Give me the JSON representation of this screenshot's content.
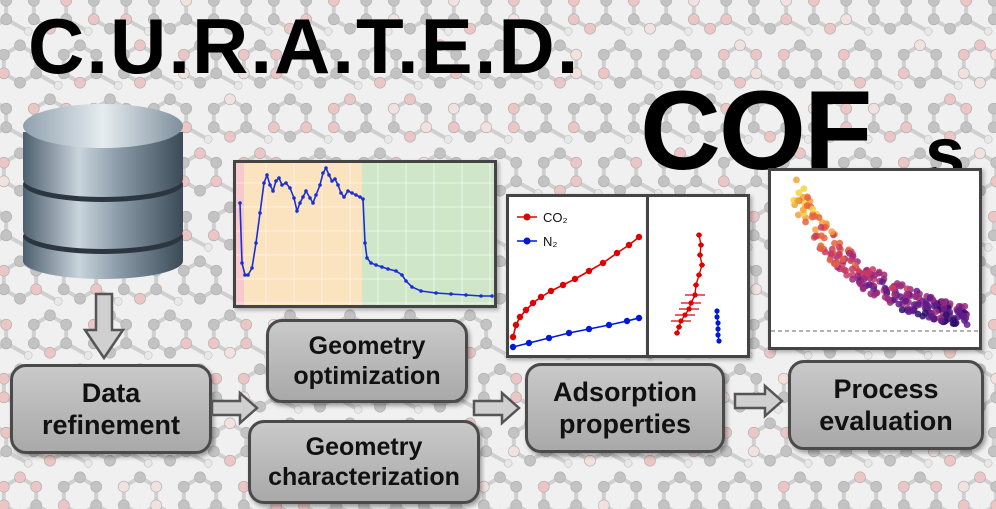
{
  "title": {
    "line1": "C.U.R.A.T.E.D.",
    "line2": "COF",
    "line2_subscript": "s"
  },
  "boxes": {
    "data_refinement": "Data\nrefinement",
    "geometry_optimization": "Geometry\noptimization",
    "geometry_characterization": "Geometry\ncharacterization",
    "adsorption_properties": "Adsorption\nproperties",
    "process_evaluation": "Process\nevaluation"
  },
  "adsorption_legend": {
    "co2": "CO₂",
    "n2": "N₂"
  },
  "colors": {
    "co2": "#e00000",
    "n2": "#0018d8",
    "profile": "#1a2fd0",
    "pink": "#f7c8cc",
    "orange": "#fce3c0",
    "green": "#cfe6c9"
  },
  "icons": [
    "database-icon"
  ]
}
